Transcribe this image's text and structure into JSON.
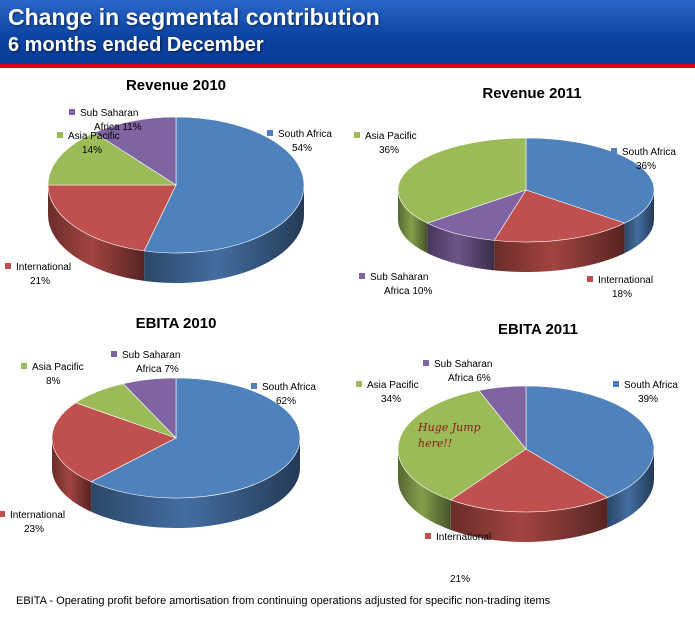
{
  "header": {
    "title": "Change in segmental contribution",
    "subtitle": "6 months ended December"
  },
  "annotation": "Huge Jump here!!",
  "footnote": "EBITA  - Operating profit before amortisation from continuing operations adjusted for specific non-trading items",
  "colors": {
    "South Africa": "#4f81bd",
    "International": "#c0504d",
    "Asia Pacific": "#9bbb59",
    "Sub Saharan Africa": "#8064a2",
    "header": "#0d44a3",
    "accent_line": "#e0001b",
    "annotation": "#8b1a1a"
  },
  "chart_data": [
    {
      "type": "pie",
      "title": "Revenue 2010",
      "slices": [
        {
          "category": "South Africa",
          "label_lines": [
            "South Africa",
            "54%"
          ],
          "value": 54
        },
        {
          "category": "International",
          "label_lines": [
            "International",
            "21%"
          ],
          "value": 21
        },
        {
          "category": "Asia Pacific",
          "label_lines": [
            "Asia Pacific",
            "14%"
          ],
          "value": 14
        },
        {
          "category": "Sub Saharan Africa",
          "label_lines": [
            "Sub Saharan",
            "Africa 11%"
          ],
          "value": 11
        }
      ]
    },
    {
      "type": "pie",
      "title": "Revenue 2011",
      "slices": [
        {
          "category": "South Africa",
          "label_lines": [
            "South Africa",
            "36%"
          ],
          "value": 36
        },
        {
          "category": "International",
          "label_lines": [
            "International",
            "18%"
          ],
          "value": 18
        },
        {
          "category": "Sub Saharan Africa",
          "label_lines": [
            "Sub Saharan",
            "Africa 10%"
          ],
          "value": 10
        },
        {
          "category": "Asia Pacific",
          "label_lines": [
            "Asia Pacific",
            "36%"
          ],
          "value": 36
        }
      ]
    },
    {
      "type": "pie",
      "title": "EBITA 2010",
      "slices": [
        {
          "category": "South Africa",
          "label_lines": [
            "South Africa",
            "62%"
          ],
          "value": 62
        },
        {
          "category": "International",
          "label_lines": [
            "International",
            "23%"
          ],
          "value": 23
        },
        {
          "category": "Asia Pacific",
          "label_lines": [
            "Asia Pacific",
            "8%"
          ],
          "value": 8
        },
        {
          "category": "Sub Saharan Africa",
          "label_lines": [
            "Sub Saharan",
            "Africa 7%"
          ],
          "value": 7
        }
      ]
    },
    {
      "type": "pie",
      "title": "EBITA 2011",
      "slices": [
        {
          "category": "South Africa",
          "label_lines": [
            "South Africa",
            "39%"
          ],
          "value": 39
        },
        {
          "category": "International",
          "label_lines": [
            "International",
            "",
            "",
            "21%"
          ],
          "value": 21
        },
        {
          "category": "Asia Pacific",
          "label_lines": [
            "Asia Pacific",
            "34%"
          ],
          "value": 34
        },
        {
          "category": "Sub Saharan Africa",
          "label_lines": [
            "Sub Saharan",
            "Africa 6%"
          ],
          "value": 6
        }
      ]
    }
  ]
}
